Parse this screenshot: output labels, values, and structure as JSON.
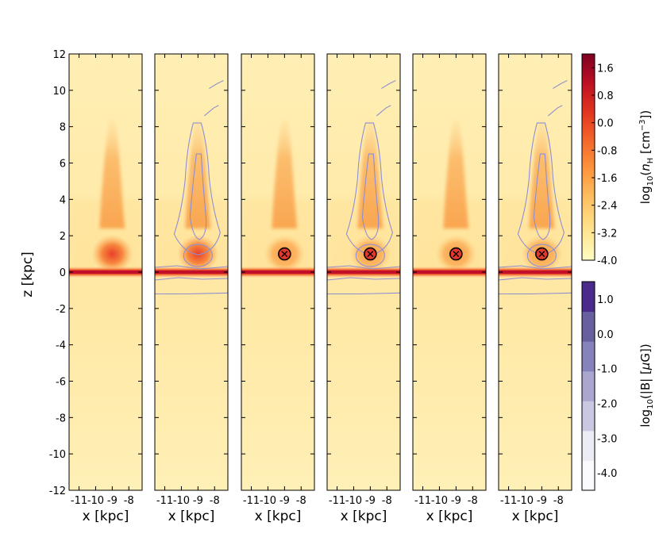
{
  "chart_data": {
    "type": "heatmap",
    "panels": 6,
    "xlabel": "x [kpc]",
    "ylabel": "z [kpc]",
    "xlim": [
      -11.6,
      -7.2
    ],
    "ylim": [
      -12,
      12
    ],
    "x_ticks": [
      -11,
      -10,
      -9,
      -8
    ],
    "x_tick_labels": [
      "-11",
      "-10",
      "-9",
      "-8"
    ],
    "y_ticks": [
      -12,
      -10,
      -8,
      -6,
      -4,
      -2,
      0,
      2,
      4,
      6,
      8,
      10,
      12
    ],
    "y_tick_labels": [
      "-12",
      "-10",
      "-8",
      "-6",
      "-4",
      "-2",
      "0",
      "2",
      "4",
      "6",
      "8",
      "10",
      "12"
    ],
    "disk_z": 0,
    "cloud": {
      "x": -9,
      "z": 1
    },
    "panel_features": [
      {
        "magnetic_contours": false,
        "cloud_marker": false,
        "cloud_head_dense": true
      },
      {
        "magnetic_contours": true,
        "cloud_marker": false,
        "cloud_head_dense": true
      },
      {
        "magnetic_contours": false,
        "cloud_marker": true,
        "cloud_head_dense": false
      },
      {
        "magnetic_contours": true,
        "cloud_marker": true,
        "cloud_head_dense": false
      },
      {
        "magnetic_contours": false,
        "cloud_marker": true,
        "cloud_head_dense": false
      },
      {
        "magnetic_contours": true,
        "cloud_marker": true,
        "cloud_head_dense": false
      }
    ],
    "colorbars": [
      {
        "label": "log₁₀(n_H [cm⁻³])",
        "label_parts": {
          "pre": "log",
          "sub1": "10",
          "mid": "(",
          "var": "n",
          "sub2": "H",
          "unit": " [cm",
          "sup": "−3",
          "post": "])"
        },
        "range": [
          -4.0,
          2.0
        ],
        "ticks": [
          1.6,
          0.8,
          0.0,
          -0.8,
          -1.6,
          -2.4,
          -3.2,
          -4.0
        ],
        "tick_labels": [
          "1.6",
          "0.8",
          "0.0",
          "-0.8",
          "-1.6",
          "-2.4",
          "-3.2",
          "-4.0"
        ],
        "colormap": [
          "#fffbc4",
          "#fee48f",
          "#fdc466",
          "#fd9940",
          "#f46a2c",
          "#e2361f",
          "#be1022",
          "#7e0021"
        ]
      },
      {
        "label": "log₁₀(|B| [μG])",
        "label_parts": {
          "pre": "log",
          "sub1": "10",
          "mid": "(|B| [",
          "mu": "μ",
          "post": "G])"
        },
        "range": [
          -4.5,
          1.5
        ],
        "ticks": [
          1.0,
          0.0,
          -1.0,
          -2.0,
          -3.0,
          -4.0
        ],
        "tick_labels": [
          "1.0",
          "0.0",
          "-1.0",
          "-2.0",
          "-3.0",
          "-4.0"
        ],
        "bands": [
          "#fbfbfd",
          "#ececf4",
          "#c9c8e0",
          "#a9a6cf",
          "#8682bb",
          "#66609f",
          "#4a2a8a"
        ]
      }
    ]
  },
  "colors": {
    "background": "#ffe9a8",
    "disk": "#c2102b",
    "contour": "#8f8fd2",
    "marker_fill": "#e03a2e",
    "marker_ring": "#000000"
  }
}
